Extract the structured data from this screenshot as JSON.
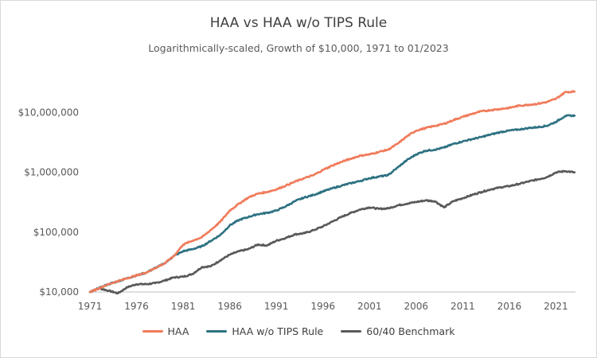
{
  "chart_data": {
    "type": "line",
    "title": "HAA vs HAA w/o TIPS Rule",
    "subtitle": "Logarithmically-scaled, Growth of $10,000, 1971 to 01/2023",
    "xlabel": "",
    "ylabel": "",
    "y_scale": "log",
    "xlim": [
      1971,
      2023.1
    ],
    "ylim": [
      10000,
      50000000
    ],
    "x_ticks": [
      1971,
      1976,
      1981,
      1986,
      1991,
      1996,
      2001,
      2006,
      2011,
      2016,
      2021
    ],
    "x_tick_labels": [
      "1971",
      "1976",
      "1981",
      "1986",
      "1991",
      "1996",
      "2001",
      "2006",
      "2011",
      "2016",
      "2021"
    ],
    "y_ticks": [
      10000,
      100000,
      1000000,
      10000000
    ],
    "y_tick_labels": [
      "$10,000",
      "$100,000",
      "$1,000,000",
      "$10,000,000"
    ],
    "grid": false,
    "legend_position": "bottom",
    "series": [
      {
        "name": "HAA",
        "color": "#f07b5b",
        "x": [
          1971,
          1973,
          1975,
          1977,
          1979,
          1980,
          1981,
          1982,
          1983,
          1984,
          1985,
          1986,
          1987,
          1988,
          1989,
          1990,
          1991,
          1992,
          1993,
          1994,
          1995,
          1996,
          1997,
          1998,
          1999,
          2000,
          2001,
          2002,
          2003,
          2004,
          2005,
          2006,
          2007,
          2008,
          2009,
          2010,
          2011,
          2012,
          2013,
          2014,
          2015,
          2016,
          2017,
          2018,
          2019,
          2020,
          2021,
          2022,
          2023
        ],
        "y": [
          10000,
          13500,
          17000,
          21000,
          30000,
          40000,
          62000,
          72000,
          82000,
          110000,
          150000,
          230000,
          300000,
          380000,
          440000,
          470000,
          520000,
          600000,
          700000,
          800000,
          900000,
          1100000,
          1300000,
          1500000,
          1700000,
          1900000,
          2000000,
          2200000,
          2400000,
          3000000,
          4000000,
          5000000,
          5500000,
          6000000,
          6500000,
          7500000,
          8500000,
          9500000,
          10500000,
          11000000,
          11500000,
          12000000,
          13000000,
          13500000,
          14000000,
          15000000,
          17000000,
          22000000,
          22500000
        ]
      },
      {
        "name": "HAA w/o TIPS Rule",
        "color": "#2e7282",
        "x": [
          1971,
          1973,
          1975,
          1977,
          1979,
          1980,
          1981,
          1982,
          1983,
          1984,
          1985,
          1986,
          1987,
          1988,
          1989,
          1990,
          1991,
          1992,
          1993,
          1994,
          1995,
          1996,
          1997,
          1998,
          1999,
          2000,
          2001,
          2002,
          2003,
          2004,
          2005,
          2006,
          2007,
          2008,
          2009,
          2010,
          2011,
          2012,
          2013,
          2014,
          2015,
          2016,
          2017,
          2018,
          2019,
          2020,
          2021,
          2022,
          2023
        ],
        "y": [
          10000,
          13500,
          17000,
          21000,
          30000,
          40000,
          48000,
          52000,
          58000,
          72000,
          90000,
          130000,
          160000,
          180000,
          200000,
          210000,
          230000,
          270000,
          330000,
          380000,
          420000,
          480000,
          540000,
          600000,
          660000,
          720000,
          800000,
          850000,
          900000,
          1200000,
          1600000,
          2000000,
          2300000,
          2400000,
          2600000,
          3000000,
          3300000,
          3600000,
          3900000,
          4300000,
          4700000,
          5000000,
          5200000,
          5500000,
          5700000,
          6000000,
          7000000,
          8800000,
          8900000
        ]
      },
      {
        "name": "60/40 Benchmark",
        "color": "#595959",
        "x": [
          1971,
          1972,
          1973,
          1974,
          1975,
          1976,
          1977,
          1978,
          1979,
          1980,
          1981,
          1982,
          1983,
          1984,
          1985,
          1986,
          1987,
          1988,
          1989,
          1990,
          1991,
          1992,
          1993,
          1994,
          1995,
          1996,
          1997,
          1998,
          1999,
          2000,
          2001,
          2002,
          2003,
          2004,
          2005,
          2006,
          2007,
          2008,
          2009,
          2010,
          2011,
          2012,
          2013,
          2014,
          2015,
          2016,
          2017,
          2018,
          2019,
          2020,
          2021,
          2022,
          2023
        ],
        "y": [
          10000,
          11500,
          10500,
          9500,
          12000,
          13500,
          13500,
          14000,
          15500,
          17500,
          18000,
          20000,
          26000,
          27000,
          34000,
          42000,
          48000,
          52000,
          62000,
          60000,
          72000,
          80000,
          92000,
          96000,
          108000,
          125000,
          150000,
          180000,
          210000,
          240000,
          260000,
          245000,
          250000,
          280000,
          300000,
          320000,
          340000,
          330000,
          260000,
          330000,
          370000,
          420000,
          470000,
          520000,
          560000,
          590000,
          640000,
          700000,
          760000,
          830000,
          1000000,
          1050000,
          1000000
        ]
      }
    ]
  }
}
